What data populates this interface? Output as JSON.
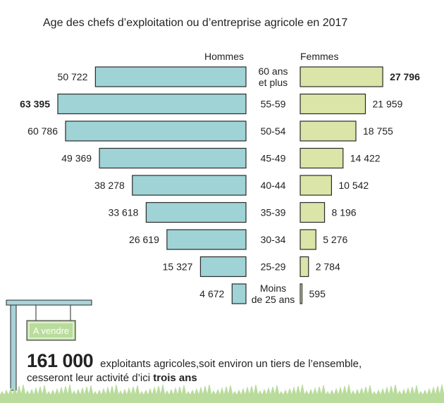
{
  "colors": {
    "men_bar": "#9fd3d6",
    "women_bar": "#dbe5a8",
    "bar_stroke": "#2a2a2a",
    "sign_post": "#a8d4d9",
    "sign_panel": "#b9dc9c",
    "grass": "#b9dc9c"
  },
  "sign": {
    "label": "A vendre"
  },
  "chart_data": {
    "type": "bar",
    "orientation": "horizontal-pyramid",
    "title": "Age des chefs d’exploitation ou d’entreprise agricole en 2017",
    "categories": [
      "60 ans et plus",
      "55-59",
      "50-54",
      "45-49",
      "40-44",
      "35-39",
      "30-34",
      "25-29",
      "Moins de 25 ans"
    ],
    "series": [
      {
        "name": "Hommes",
        "values": [
          50722,
          63395,
          60786,
          49369,
          38278,
          33618,
          26619,
          15327,
          4672
        ],
        "labels": [
          "50 722",
          "63 395",
          "60 786",
          "49 369",
          "38 278",
          "33 618",
          "26 619",
          "15 327",
          "4 672"
        ]
      },
      {
        "name": "Femmes",
        "values": [
          27796,
          21959,
          18755,
          14422,
          10542,
          8196,
          5276,
          2784,
          595
        ],
        "labels": [
          "27 796",
          "21 959",
          "18 755",
          "14 422",
          "10 542",
          "8 196",
          "5 276",
          "2 784",
          "595"
        ]
      }
    ],
    "bold_labels": {
      "Hommes": [
        1
      ],
      "Femmes": [
        0
      ]
    },
    "xlim": [
      0,
      63395
    ]
  },
  "footer": {
    "count": "161 000",
    "desc": "exploitants agricoles,soit environ un tiers de l’ensemble,",
    "line2_pre": "cesseront leur activité d’ici ",
    "line2_bold": "trois ans"
  }
}
